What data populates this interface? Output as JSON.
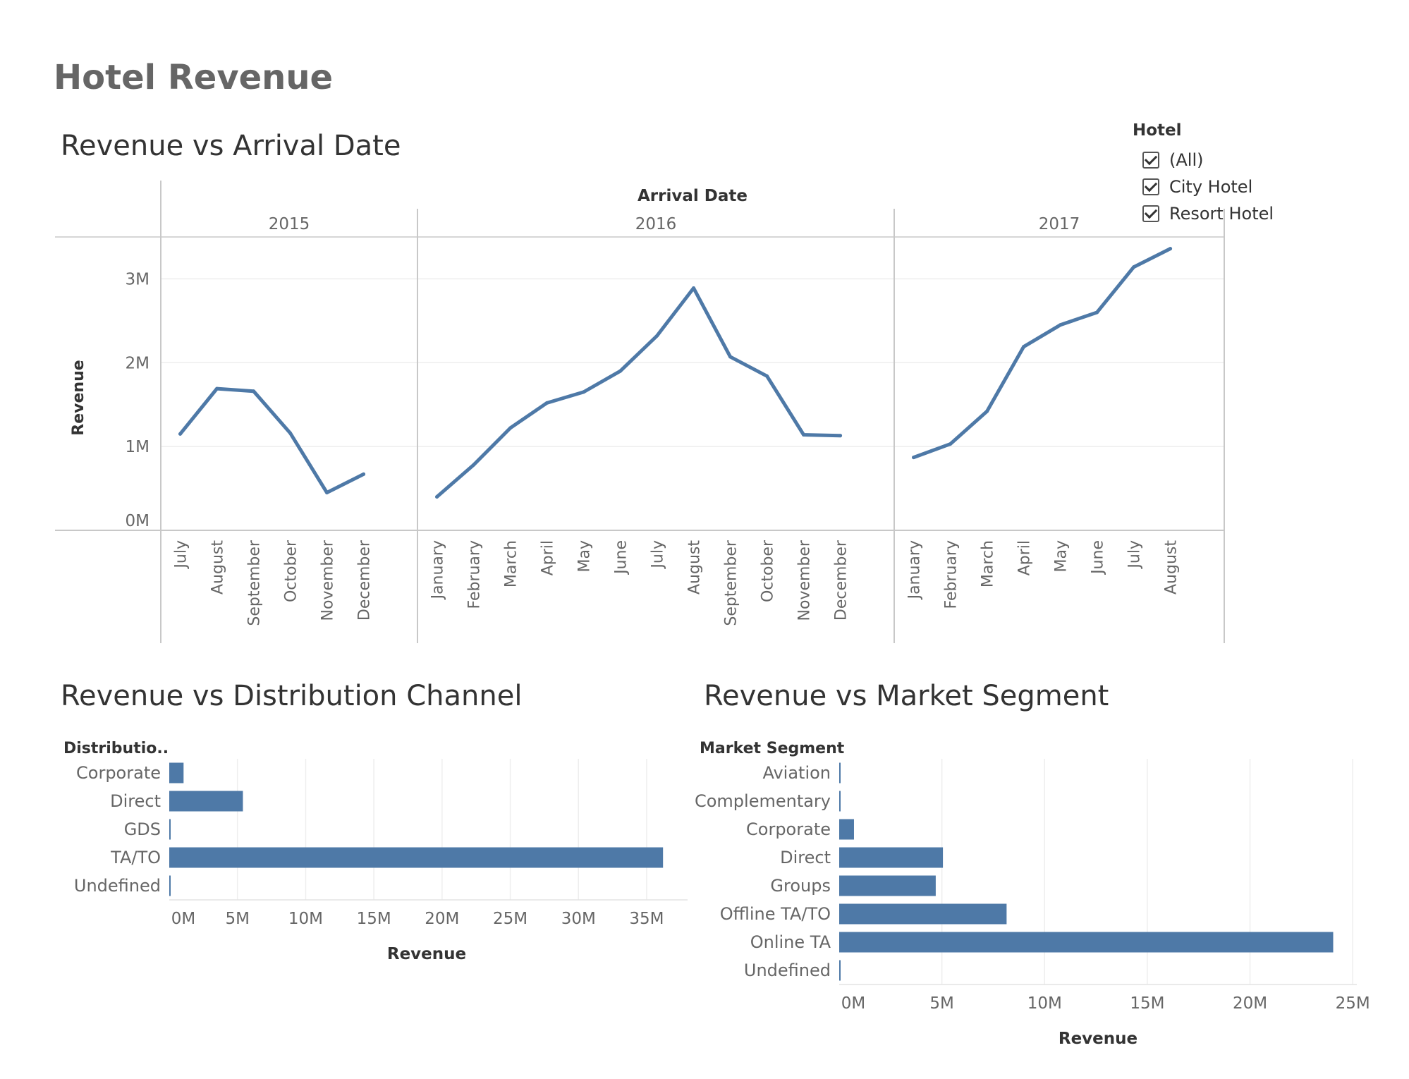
{
  "dashboard": {
    "title": "Hotel Revenue"
  },
  "filter": {
    "title": "Hotel",
    "options": [
      {
        "label": "(All)",
        "checked": true
      },
      {
        "label": "City Hotel",
        "checked": true
      },
      {
        "label": "Resort Hotel",
        "checked": true
      }
    ]
  },
  "chart_data": [
    {
      "id": "arrival",
      "type": "line",
      "title": "Revenue vs Arrival Date",
      "column_header": "Arrival Date",
      "ylabel": "Revenue",
      "ylim": [
        0,
        3500000
      ],
      "y_ticks": [
        0,
        1000000,
        2000000,
        3000000
      ],
      "y_tick_labels": [
        "0M",
        "1M",
        "2M",
        "3M"
      ],
      "grid": true,
      "color": "#4e79a7",
      "panels": [
        {
          "year": "2015",
          "months": [
            "July",
            "August",
            "September",
            "October",
            "November",
            "December"
          ],
          "values": [
            1150000,
            1690000,
            1660000,
            1160000,
            450000,
            670000
          ]
        },
        {
          "year": "2016",
          "months": [
            "January",
            "February",
            "March",
            "April",
            "May",
            "June",
            "July",
            "August",
            "September",
            "October",
            "November",
            "December"
          ],
          "values": [
            400000,
            780000,
            1220000,
            1520000,
            1650000,
            1900000,
            2320000,
            2890000,
            2070000,
            1840000,
            1140000,
            1130000
          ]
        },
        {
          "year": "2017",
          "months": [
            "January",
            "February",
            "March",
            "April",
            "May",
            "June",
            "July",
            "August"
          ],
          "values": [
            870000,
            1030000,
            1420000,
            2190000,
            2450000,
            2600000,
            3140000,
            3360000
          ]
        }
      ]
    },
    {
      "id": "distribution",
      "type": "bar",
      "orientation": "horizontal",
      "title": "Revenue vs Distribution Channel",
      "category_header": "Distributio..",
      "xlabel": "Revenue",
      "xlim": [
        0,
        38000000
      ],
      "x_ticks": [
        0,
        5000000,
        10000000,
        15000000,
        20000000,
        25000000,
        30000000,
        35000000
      ],
      "x_tick_labels": [
        "0M",
        "5M",
        "10M",
        "15M",
        "20M",
        "25M",
        "30M",
        "35M"
      ],
      "categories": [
        "Corporate",
        "Direct",
        "GDS",
        "TA/TO",
        "Undefined"
      ],
      "values": [
        1050000,
        5400000,
        25000,
        36200000,
        5000
      ],
      "color": "#4e79a7"
    },
    {
      "id": "segment",
      "type": "bar",
      "orientation": "horizontal",
      "title": "Revenue vs Market Segment",
      "category_header": "Market Segment",
      "xlabel": "Revenue",
      "xlim": [
        0,
        25200000
      ],
      "x_ticks": [
        0,
        5000000,
        10000000,
        15000000,
        20000000,
        25000000
      ],
      "x_tick_labels": [
        "0M",
        "5M",
        "10M",
        "15M",
        "20M",
        "25M"
      ],
      "categories": [
        "Aviation",
        "Complementary",
        "Corporate",
        "Direct",
        "Groups",
        "Offline TA/TO",
        "Online TA",
        "Undefined"
      ],
      "values": [
        20000,
        10000,
        720000,
        5050000,
        4700000,
        8150000,
        24050000,
        5000
      ],
      "color": "#4e79a7"
    }
  ]
}
